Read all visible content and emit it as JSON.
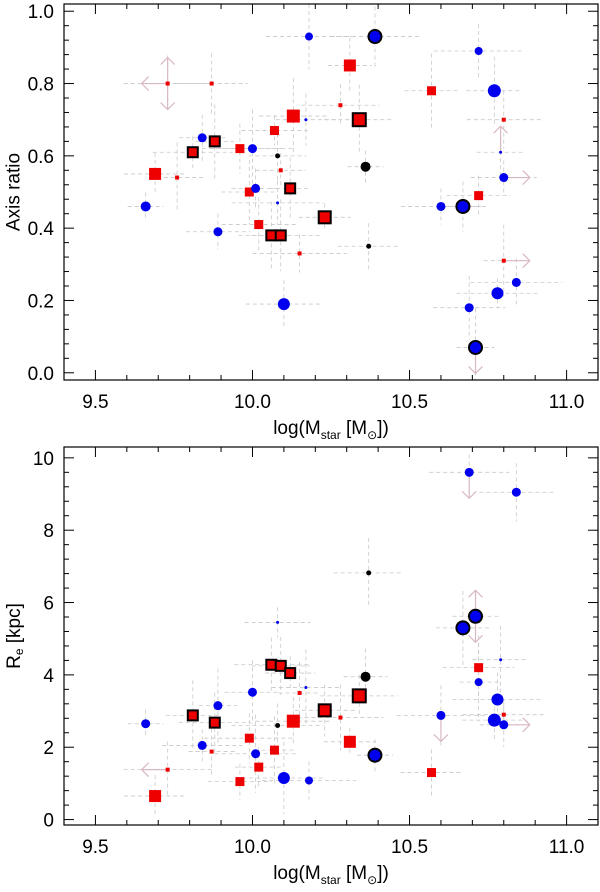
{
  "chart_data": [
    {
      "type": "scatter",
      "id": "top",
      "title": "",
      "xlabel": "log(M",
      "xlabel_sub": "star",
      "xlabel_unit_open": " [M",
      "xlabel_unit_sym": "⊙",
      "xlabel_unit_close": "])",
      "ylabel": "Axis ratio",
      "xlim": [
        9.4,
        11.1
      ],
      "ylim": [
        -0.02,
        1.02
      ],
      "xticks": [
        9.5,
        10.0,
        10.5,
        11.0
      ],
      "xtick_labels": [
        "9.5",
        "10.0",
        "10.5",
        "11.0"
      ],
      "yticks": [
        0.0,
        0.2,
        0.4,
        0.6,
        0.8,
        1.0
      ],
      "ytick_labels": [
        "0.0",
        "0.2",
        "0.4",
        "0.6",
        "0.8",
        "1.0"
      ],
      "colors": {
        "blue": "#0000ee",
        "red": "#ee0000",
        "black": "#000000",
        "err": "#c8c8c8",
        "arrow": "#d8b8c0"
      },
      "points": [
        {
          "x": 9.66,
          "y": 0.46,
          "shape": "circle",
          "color": "blue",
          "size": 5,
          "edge": false
        },
        {
          "x": 9.69,
          "y": 0.55,
          "shape": "square",
          "color": "red",
          "size": 6,
          "edge": false
        },
        {
          "x": 9.73,
          "y": 0.8,
          "shape": "square",
          "color": "red",
          "size": 2,
          "edge": false
        },
        {
          "x": 9.76,
          "y": 0.54,
          "shape": "square",
          "color": "red",
          "size": 2,
          "edge": false
        },
        {
          "x": 9.81,
          "y": 0.61,
          "shape": "square",
          "color": "red",
          "size": 5,
          "edge": true
        },
        {
          "x": 9.84,
          "y": 0.65,
          "shape": "circle",
          "color": "blue",
          "size": 4.5,
          "edge": false
        },
        {
          "x": 9.87,
          "y": 0.8,
          "shape": "square",
          "color": "red",
          "size": 2,
          "edge": false
        },
        {
          "x": 9.88,
          "y": 0.64,
          "shape": "square",
          "color": "red",
          "size": 5,
          "edge": true
        },
        {
          "x": 9.89,
          "y": 0.39,
          "shape": "circle",
          "color": "blue",
          "size": 4.5,
          "edge": false
        },
        {
          "x": 9.96,
          "y": 0.62,
          "shape": "square",
          "color": "red",
          "size": 4.5,
          "edge": false
        },
        {
          "x": 9.99,
          "y": 0.5,
          "shape": "square",
          "color": "red",
          "size": 4.5,
          "edge": false
        },
        {
          "x": 10.0,
          "y": 0.62,
          "shape": "circle",
          "color": "blue",
          "size": 4.5,
          "edge": false
        },
        {
          "x": 10.01,
          "y": 0.51,
          "shape": "circle",
          "color": "blue",
          "size": 4.5,
          "edge": false
        },
        {
          "x": 10.02,
          "y": 0.41,
          "shape": "square",
          "color": "red",
          "size": 4.5,
          "edge": false
        },
        {
          "x": 10.06,
          "y": 0.38,
          "shape": "square",
          "color": "red",
          "size": 5,
          "edge": true
        },
        {
          "x": 10.07,
          "y": 0.67,
          "shape": "square",
          "color": "red",
          "size": 4.5,
          "edge": false
        },
        {
          "x": 10.08,
          "y": 0.47,
          "shape": "circle",
          "color": "blue",
          "size": 1.5,
          "edge": false
        },
        {
          "x": 10.08,
          "y": 0.6,
          "shape": "circle",
          "color": "black",
          "size": 2.5,
          "edge": false
        },
        {
          "x": 10.09,
          "y": 0.38,
          "shape": "square",
          "color": "red",
          "size": 5,
          "edge": true
        },
        {
          "x": 10.09,
          "y": 0.56,
          "shape": "square",
          "color": "red",
          "size": 2,
          "edge": false
        },
        {
          "x": 10.1,
          "y": 0.19,
          "shape": "circle",
          "color": "blue",
          "size": 6,
          "edge": false
        },
        {
          "x": 10.12,
          "y": 0.51,
          "shape": "square",
          "color": "red",
          "size": 5,
          "edge": true
        },
        {
          "x": 10.13,
          "y": 0.71,
          "shape": "square",
          "color": "red",
          "size": 6.5,
          "edge": false
        },
        {
          "x": 10.15,
          "y": 0.33,
          "shape": "square",
          "color": "red",
          "size": 2,
          "edge": false
        },
        {
          "x": 10.17,
          "y": 0.7,
          "shape": "circle",
          "color": "blue",
          "size": 1.5,
          "edge": false
        },
        {
          "x": 10.18,
          "y": 0.93,
          "shape": "circle",
          "color": "blue",
          "size": 4,
          "edge": false
        },
        {
          "x": 10.23,
          "y": 0.43,
          "shape": "square",
          "color": "red",
          "size": 6,
          "edge": true
        },
        {
          "x": 10.28,
          "y": 0.74,
          "shape": "square",
          "color": "red",
          "size": 2,
          "edge": false
        },
        {
          "x": 10.31,
          "y": 0.85,
          "shape": "square",
          "color": "red",
          "size": 6,
          "edge": false
        },
        {
          "x": 10.34,
          "y": 0.7,
          "shape": "square",
          "color": "red",
          "size": 6.5,
          "edge": true
        },
        {
          "x": 10.36,
          "y": 0.57,
          "shape": "circle",
          "color": "black",
          "size": 5,
          "edge": false
        },
        {
          "x": 10.37,
          "y": 0.35,
          "shape": "circle",
          "color": "black",
          "size": 2.5,
          "edge": false
        },
        {
          "x": 10.39,
          "y": 0.93,
          "shape": "circle",
          "color": "blue",
          "size": 6.5,
          "edge": true
        },
        {
          "x": 10.57,
          "y": 0.78,
          "shape": "square",
          "color": "red",
          "size": 4.5,
          "edge": false
        },
        {
          "x": 10.6,
          "y": 0.46,
          "shape": "circle",
          "color": "blue",
          "size": 4.5,
          "edge": false
        },
        {
          "x": 10.67,
          "y": 0.46,
          "shape": "circle",
          "color": "blue",
          "size": 6.5,
          "edge": true
        },
        {
          "x": 10.69,
          "y": 0.18,
          "shape": "circle",
          "color": "blue",
          "size": 4.5,
          "edge": false
        },
        {
          "x": 10.71,
          "y": 0.07,
          "shape": "circle",
          "color": "blue",
          "size": 6.5,
          "edge": true
        },
        {
          "x": 10.72,
          "y": 0.49,
          "shape": "square",
          "color": "red",
          "size": 4.5,
          "edge": false
        },
        {
          "x": 10.72,
          "y": 0.89,
          "shape": "circle",
          "color": "blue",
          "size": 4,
          "edge": false
        },
        {
          "x": 10.77,
          "y": 0.78,
          "shape": "circle",
          "color": "blue",
          "size": 6.5,
          "edge": false
        },
        {
          "x": 10.78,
          "y": 0.22,
          "shape": "circle",
          "color": "blue",
          "size": 6,
          "edge": false
        },
        {
          "x": 10.79,
          "y": 0.61,
          "shape": "circle",
          "color": "blue",
          "size": 1.5,
          "edge": false
        },
        {
          "x": 10.8,
          "y": 0.7,
          "shape": "square",
          "color": "red",
          "size": 2,
          "edge": false
        },
        {
          "x": 10.8,
          "y": 0.31,
          "shape": "square",
          "color": "red",
          "size": 2,
          "edge": false
        },
        {
          "x": 10.8,
          "y": 0.54,
          "shape": "circle",
          "color": "blue",
          "size": 4.5,
          "edge": false
        },
        {
          "x": 10.84,
          "y": 0.25,
          "shape": "circle",
          "color": "blue",
          "size": 4.5,
          "edge": false
        }
      ],
      "arrows": [
        {
          "x": 9.73,
          "y": 0.8,
          "dir": "left"
        },
        {
          "x": 9.73,
          "y": 0.8,
          "dir": "up"
        },
        {
          "x": 9.73,
          "y": 0.8,
          "dir": "down"
        },
        {
          "x": 10.8,
          "y": 0.54,
          "dir": "right"
        },
        {
          "x": 10.8,
          "y": 0.31,
          "dir": "right"
        },
        {
          "x": 10.79,
          "y": 0.61,
          "dir": "up"
        },
        {
          "x": 10.71,
          "y": 0.07,
          "dir": "down"
        }
      ]
    },
    {
      "type": "scatter",
      "id": "bottom",
      "title": "",
      "xlabel": "log(M",
      "xlabel_sub": "star",
      "xlabel_unit_open": " [M",
      "xlabel_unit_sym": "⊙",
      "xlabel_unit_close": "])",
      "ylabel": "R",
      "ylabel_sub": "e",
      "ylabel_unit": " [kpc]",
      "xlim": [
        9.4,
        11.1
      ],
      "ylim": [
        -0.15,
        10.3
      ],
      "xticks": [
        9.5,
        10.0,
        10.5,
        11.0
      ],
      "xtick_labels": [
        "9.5",
        "10.0",
        "10.5",
        "11.0"
      ],
      "yticks": [
        0,
        2,
        4,
        6,
        8,
        10
      ],
      "ytick_labels": [
        "0",
        "2",
        "4",
        "6",
        "8",
        "10"
      ],
      "colors": {
        "blue": "#0000ee",
        "red": "#ee0000",
        "black": "#000000",
        "err": "#c8c8c8",
        "arrow": "#d8b8c0"
      },
      "points": [
        {
          "x": 9.66,
          "y": 2.65,
          "shape": "circle",
          "color": "blue",
          "size": 4.5,
          "edge": false
        },
        {
          "x": 9.69,
          "y": 0.65,
          "shape": "square",
          "color": "red",
          "size": 6,
          "edge": false
        },
        {
          "x": 9.73,
          "y": 1.38,
          "shape": "square",
          "color": "red",
          "size": 2,
          "edge": false
        },
        {
          "x": 9.81,
          "y": 2.88,
          "shape": "square",
          "color": "red",
          "size": 5,
          "edge": true
        },
        {
          "x": 9.84,
          "y": 2.05,
          "shape": "circle",
          "color": "blue",
          "size": 4.5,
          "edge": false
        },
        {
          "x": 9.87,
          "y": 1.88,
          "shape": "square",
          "color": "red",
          "size": 2,
          "edge": false
        },
        {
          "x": 9.88,
          "y": 2.68,
          "shape": "square",
          "color": "red",
          "size": 5,
          "edge": true
        },
        {
          "x": 9.89,
          "y": 3.15,
          "shape": "circle",
          "color": "blue",
          "size": 4.5,
          "edge": false
        },
        {
          "x": 9.96,
          "y": 1.05,
          "shape": "square",
          "color": "red",
          "size": 4.5,
          "edge": false
        },
        {
          "x": 9.99,
          "y": 2.25,
          "shape": "square",
          "color": "red",
          "size": 4.5,
          "edge": false
        },
        {
          "x": 10.0,
          "y": 3.52,
          "shape": "circle",
          "color": "blue",
          "size": 4.5,
          "edge": false
        },
        {
          "x": 10.01,
          "y": 1.82,
          "shape": "circle",
          "color": "blue",
          "size": 4.5,
          "edge": false
        },
        {
          "x": 10.02,
          "y": 1.45,
          "shape": "square",
          "color": "red",
          "size": 4.5,
          "edge": false
        },
        {
          "x": 10.06,
          "y": 4.28,
          "shape": "square",
          "color": "red",
          "size": 5,
          "edge": true
        },
        {
          "x": 10.07,
          "y": 1.92,
          "shape": "square",
          "color": "red",
          "size": 4.5,
          "edge": false
        },
        {
          "x": 10.08,
          "y": 5.45,
          "shape": "circle",
          "color": "blue",
          "size": 1.5,
          "edge": false
        },
        {
          "x": 10.08,
          "y": 2.6,
          "shape": "circle",
          "color": "black",
          "size": 2.5,
          "edge": false
        },
        {
          "x": 10.09,
          "y": 4.25,
          "shape": "square",
          "color": "red",
          "size": 5,
          "edge": true
        },
        {
          "x": 10.1,
          "y": 1.15,
          "shape": "circle",
          "color": "blue",
          "size": 6,
          "edge": false
        },
        {
          "x": 10.12,
          "y": 4.05,
          "shape": "square",
          "color": "red",
          "size": 5,
          "edge": true
        },
        {
          "x": 10.13,
          "y": 2.72,
          "shape": "square",
          "color": "red",
          "size": 6.5,
          "edge": false
        },
        {
          "x": 10.15,
          "y": 3.5,
          "shape": "square",
          "color": "red",
          "size": 2,
          "edge": false
        },
        {
          "x": 10.17,
          "y": 3.65,
          "shape": "circle",
          "color": "blue",
          "size": 1.5,
          "edge": false
        },
        {
          "x": 10.18,
          "y": 1.08,
          "shape": "circle",
          "color": "blue",
          "size": 4,
          "edge": false
        },
        {
          "x": 10.23,
          "y": 3.02,
          "shape": "square",
          "color": "red",
          "size": 6,
          "edge": true
        },
        {
          "x": 10.28,
          "y": 2.82,
          "shape": "square",
          "color": "red",
          "size": 2,
          "edge": false
        },
        {
          "x": 10.31,
          "y": 2.15,
          "shape": "square",
          "color": "red",
          "size": 6,
          "edge": false
        },
        {
          "x": 10.34,
          "y": 3.42,
          "shape": "square",
          "color": "red",
          "size": 6.5,
          "edge": true
        },
        {
          "x": 10.36,
          "y": 3.95,
          "shape": "circle",
          "color": "black",
          "size": 5,
          "edge": false
        },
        {
          "x": 10.37,
          "y": 6.82,
          "shape": "circle",
          "color": "black",
          "size": 2.5,
          "edge": false
        },
        {
          "x": 10.39,
          "y": 1.78,
          "shape": "circle",
          "color": "blue",
          "size": 6.5,
          "edge": true
        },
        {
          "x": 10.57,
          "y": 1.3,
          "shape": "square",
          "color": "red",
          "size": 4.5,
          "edge": false
        },
        {
          "x": 10.6,
          "y": 2.88,
          "shape": "circle",
          "color": "blue",
          "size": 4.5,
          "edge": false
        },
        {
          "x": 10.67,
          "y": 5.3,
          "shape": "circle",
          "color": "blue",
          "size": 6.5,
          "edge": true
        },
        {
          "x": 10.69,
          "y": 9.6,
          "shape": "circle",
          "color": "blue",
          "size": 4.5,
          "edge": false
        },
        {
          "x": 10.71,
          "y": 5.62,
          "shape": "circle",
          "color": "blue",
          "size": 6.5,
          "edge": true
        },
        {
          "x": 10.72,
          "y": 4.2,
          "shape": "square",
          "color": "red",
          "size": 4.5,
          "edge": false
        },
        {
          "x": 10.72,
          "y": 3.8,
          "shape": "circle",
          "color": "blue",
          "size": 4,
          "edge": false
        },
        {
          "x": 10.77,
          "y": 2.75,
          "shape": "circle",
          "color": "blue",
          "size": 6.5,
          "edge": false
        },
        {
          "x": 10.78,
          "y": 3.32,
          "shape": "circle",
          "color": "blue",
          "size": 6,
          "edge": false
        },
        {
          "x": 10.79,
          "y": 4.42,
          "shape": "circle",
          "color": "blue",
          "size": 1.5,
          "edge": false
        },
        {
          "x": 10.8,
          "y": 2.9,
          "shape": "square",
          "color": "red",
          "size": 2,
          "edge": false
        },
        {
          "x": 10.8,
          "y": 2.62,
          "shape": "circle",
          "color": "blue",
          "size": 4.5,
          "edge": false
        },
        {
          "x": 10.84,
          "y": 9.05,
          "shape": "circle",
          "color": "blue",
          "size": 4.5,
          "edge": false
        }
      ],
      "arrows": [
        {
          "x": 9.73,
          "y": 1.38,
          "dir": "left"
        },
        {
          "x": 10.69,
          "y": 9.6,
          "dir": "down"
        },
        {
          "x": 10.71,
          "y": 5.62,
          "dir": "up"
        },
        {
          "x": 10.71,
          "y": 5.62,
          "dir": "down"
        },
        {
          "x": 10.8,
          "y": 2.62,
          "dir": "right"
        },
        {
          "x": 10.6,
          "y": 2.88,
          "dir": "down"
        }
      ]
    }
  ]
}
